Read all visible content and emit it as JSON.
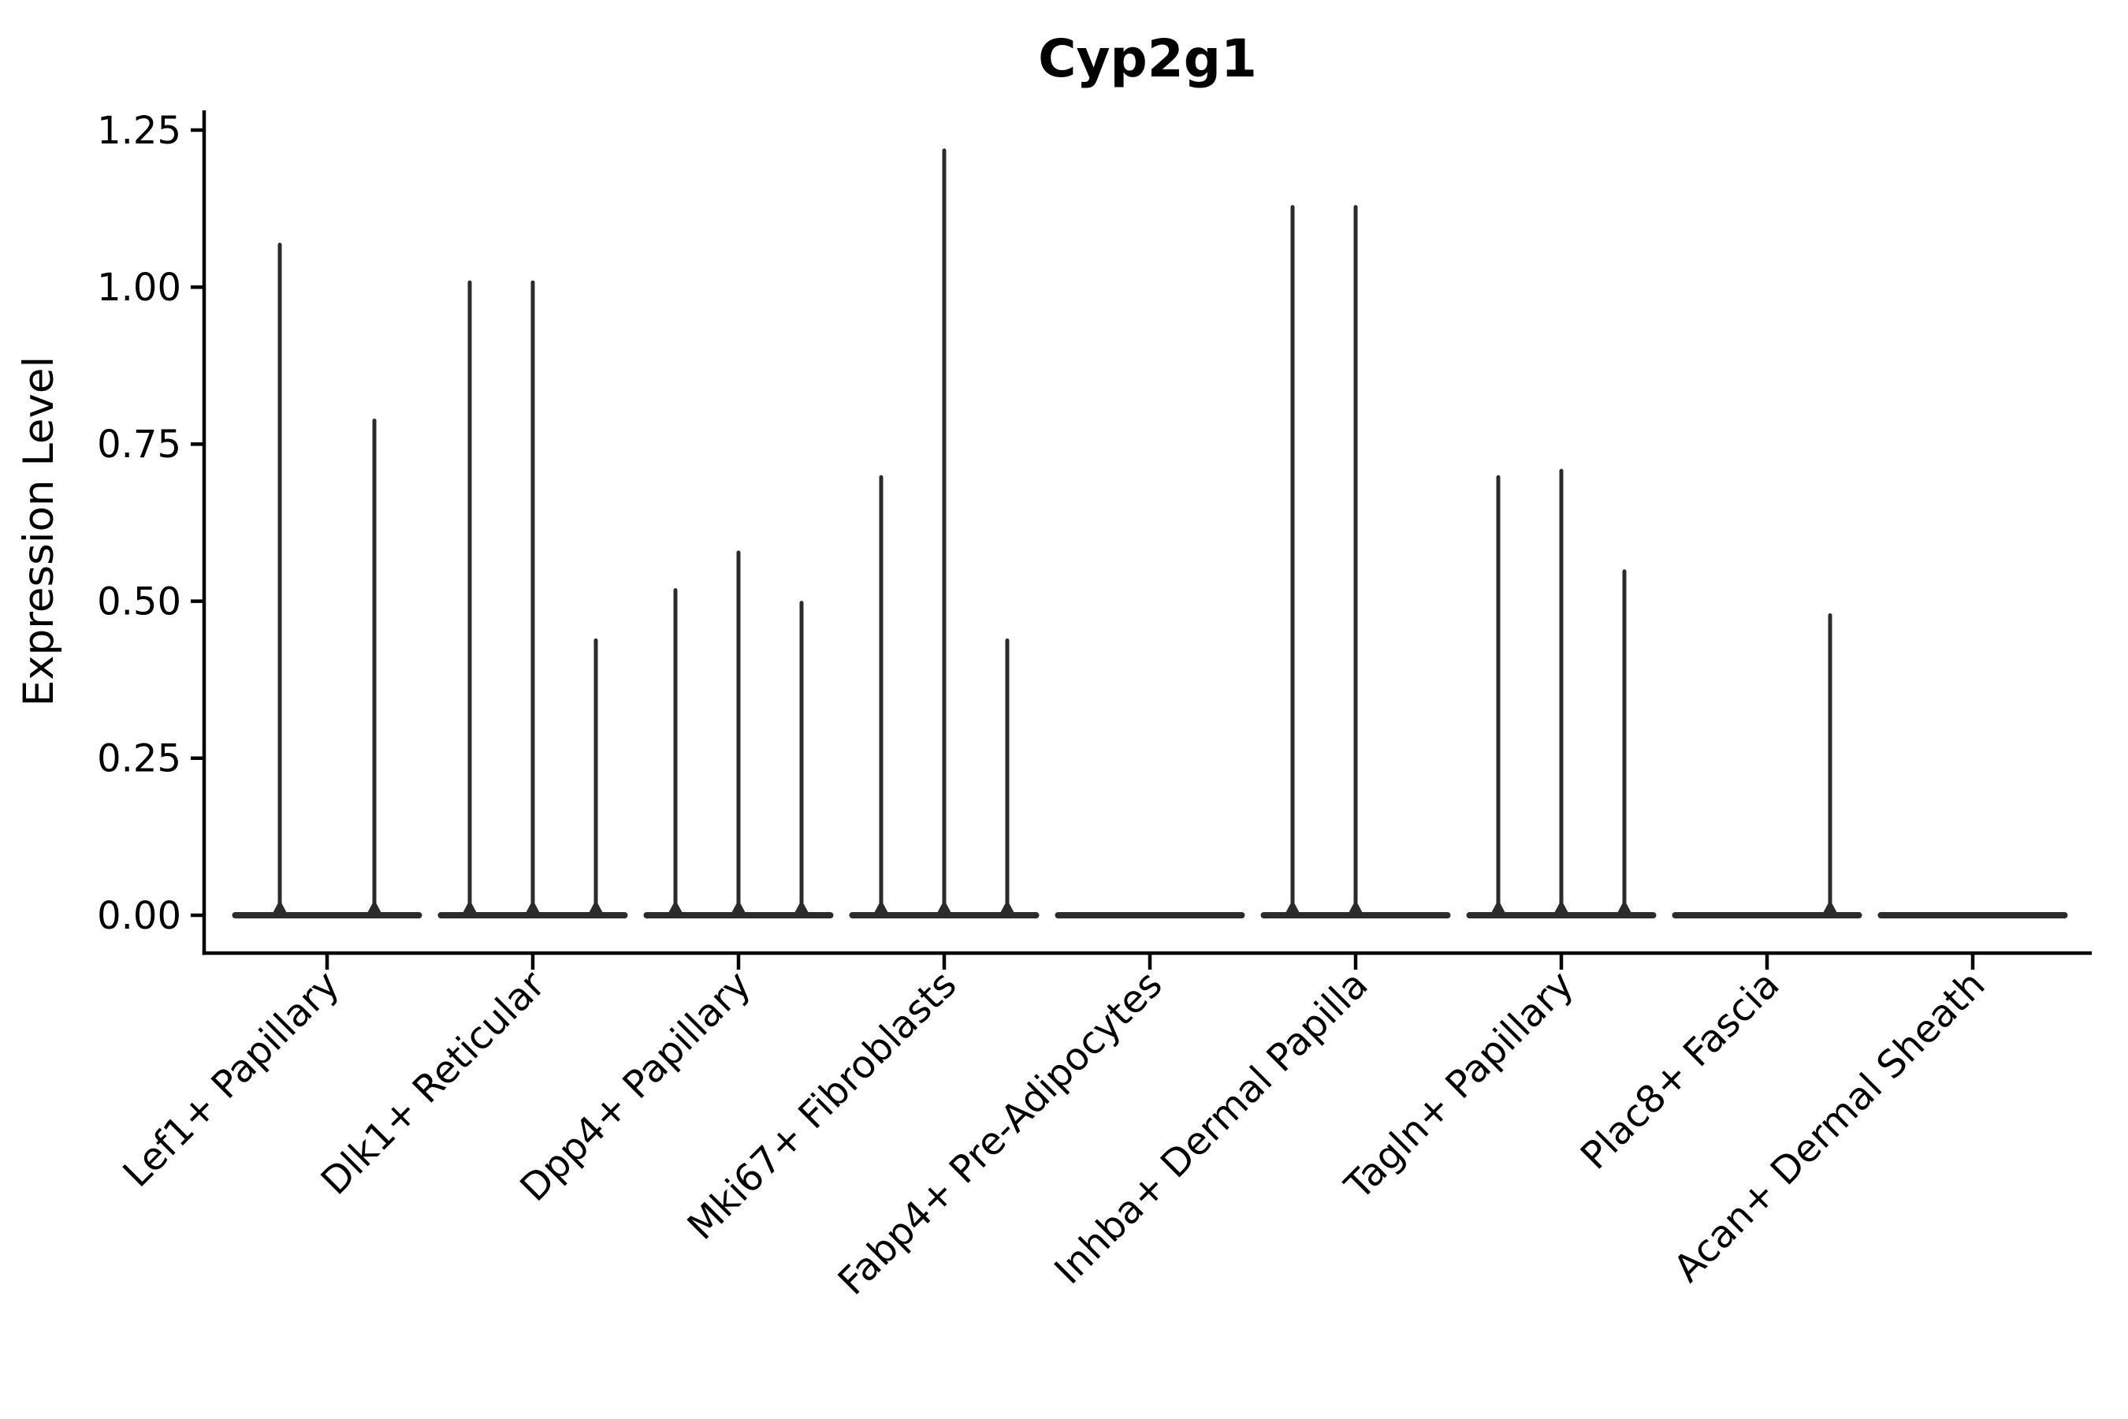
{
  "chart_data": {
    "type": "violin",
    "title": "Cyp2g1",
    "ylabel": "Expression Level",
    "xlabel": "",
    "ylim": [
      0,
      1.25
    ],
    "y_ticks": [
      "0.00",
      "0.25",
      "0.50",
      "0.75",
      "1.00",
      "1.25"
    ],
    "y_tick_values": [
      0,
      0.25,
      0.5,
      0.75,
      1.0,
      1.25
    ],
    "x_tick_rotation_deg": 45,
    "grid": false,
    "legend_position": "none",
    "categories": [
      "Lef1+ Papillary",
      "Dlk1+ Reticular",
      "Dpp4+ Papillary",
      "Mki67+ Fibroblasts",
      "Fabp4+ Pre-Adipocytes",
      "Inhba+ Dermal Papilla",
      "Tagln+ Papillary",
      "Plac8+ Fascia",
      "Acan+ Dermal Sheath"
    ],
    "groups": [
      {
        "label": "Lef1+ Papillary",
        "violins": [
          {
            "offset": -60,
            "peak": 1.07
          },
          {
            "offset": 60,
            "peak": 0.79
          }
        ]
      },
      {
        "label": "Dlk1+ Reticular",
        "violins": [
          {
            "offset": -80,
            "peak": 1.01
          },
          {
            "offset": 0,
            "peak": 1.01
          },
          {
            "offset": 80,
            "peak": 0.44
          }
        ]
      },
      {
        "label": "Dpp4+ Papillary",
        "violins": [
          {
            "offset": -80,
            "peak": 0.52
          },
          {
            "offset": 0,
            "peak": 0.58
          },
          {
            "offset": 80,
            "peak": 0.5
          }
        ]
      },
      {
        "label": "Mki67+ Fibroblasts",
        "violins": [
          {
            "offset": -80,
            "peak": 0.7
          },
          {
            "offset": 0,
            "peak": 1.22
          },
          {
            "offset": 80,
            "peak": 0.44
          }
        ]
      },
      {
        "label": "Fabp4+ Pre-Adipocytes",
        "violins": []
      },
      {
        "label": "Inhba+ Dermal Papilla",
        "violins": [
          {
            "offset": -80,
            "peak": 1.13
          },
          {
            "offset": 0,
            "peak": 1.13
          }
        ]
      },
      {
        "label": "Tagln+ Papillary",
        "violins": [
          {
            "offset": -80,
            "peak": 0.7
          },
          {
            "offset": 0,
            "peak": 0.71
          },
          {
            "offset": 80,
            "peak": 0.55
          }
        ]
      },
      {
        "label": "Plac8+ Fascia",
        "violins": [
          {
            "offset": 80,
            "peak": 0.48
          }
        ]
      },
      {
        "label": "Acan+ Dermal Sheath",
        "violins": []
      }
    ],
    "colors": {
      "violin": "#2b2b2b",
      "axis": "#000000",
      "text": "#000000",
      "background": "#ffffff"
    }
  }
}
